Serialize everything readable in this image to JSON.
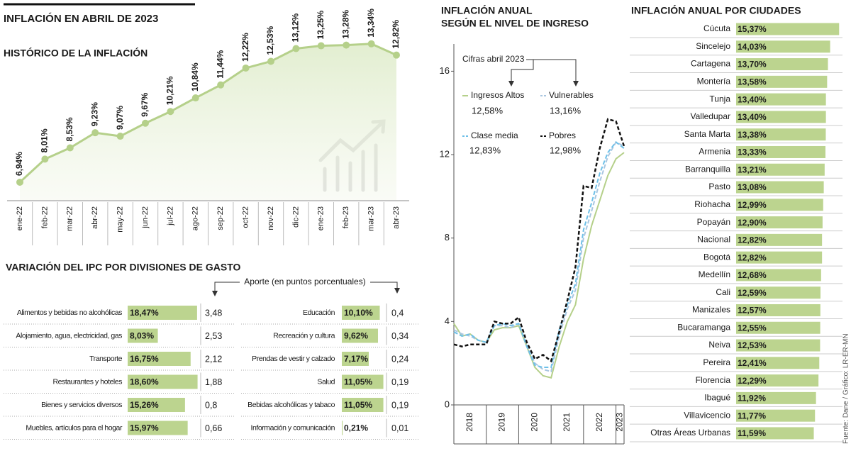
{
  "title": "INFLACIÓN EN ABRIL DE 2023",
  "source": "Fuente: Dane / Gráfico: LR-ER-MN",
  "chart_data": [
    {
      "type": "line",
      "title": "HISTÓRICO DE LA INFLACIÓN",
      "categories": [
        "ene-22",
        "feb-22",
        "mar-22",
        "abr-22",
        "may-22",
        "jun-22",
        "jul-22",
        "ago-22",
        "sep-22",
        "oct-22",
        "nov-22",
        "dic-22",
        "ene-23",
        "feb-23",
        "mar-23",
        "abr-23"
      ],
      "values": [
        6.94,
        8.01,
        8.53,
        9.23,
        9.07,
        9.67,
        10.21,
        10.84,
        11.44,
        12.22,
        12.53,
        13.12,
        13.25,
        13.28,
        13.34,
        12.82
      ],
      "value_labels": [
        "6,94%",
        "8,01%",
        "8,53%",
        "9,23%",
        "9,07%",
        "9,67%",
        "10,21%",
        "10,84%",
        "11,44%",
        "12,22%",
        "12,53%",
        "13,12%",
        "13,25%",
        "13,28%",
        "13,34%",
        "12,82%"
      ],
      "color": "#b5d08a"
    },
    {
      "type": "table-bar",
      "title": "VARIACIÓN DEL IPC POR DIVISIONES DE GASTO",
      "categories": [
        "Alimentos y bebidas no alcohólicas",
        "Alojamiento, agua, electricidad, gas",
        "Transporte",
        "Restaurantes y hoteles",
        "Bienes y servicios diversos",
        "Muebles, artículos para el hogar",
        "Educación",
        "Recreación y cultura",
        "Prendas de vestir y calzado",
        "Salud",
        "Bebidas alcohólicas y tabaco",
        "Información y comunicación"
      ],
      "values": [
        18.47,
        8.03,
        16.75,
        18.6,
        15.26,
        15.97,
        10.1,
        9.62,
        7.17,
        11.05,
        11.05,
        0.21
      ],
      "value_labels": [
        "18,47%",
        "8,03%",
        "16,75%",
        "18,60%",
        "15,26%",
        "15,97%",
        "10,10%",
        "9,62%",
        "7,17%",
        "11,05%",
        "11,05%",
        "0,21%"
      ],
      "color": "#bcd48f",
      "aporte_title": "Aporte (en puntos porcentuales)",
      "aporte": [
        3.48,
        2.53,
        2.12,
        1.88,
        0.8,
        0.66,
        0.4,
        0.34,
        0.24,
        0.19,
        0.19,
        0.01
      ],
      "aporte_labels": [
        "3,48",
        "2,53",
        "2,12",
        "1,88",
        "0,8",
        "0,66",
        "0,4",
        "0,34",
        "0,24",
        "0,19",
        "0,19",
        "0,01"
      ]
    },
    {
      "type": "multiline",
      "title": [
        "INFLACIÓN ANUAL",
        "SEGÚN EL NIVEL DE INGRESO"
      ],
      "annotation": "Cifras abril 2023",
      "x": [
        2018,
        2018.25,
        2018.5,
        2018.75,
        2019,
        2019.25,
        2019.5,
        2019.75,
        2020,
        2020.25,
        2020.5,
        2020.75,
        2021,
        2021.25,
        2021.5,
        2021.75,
        2022,
        2022.25,
        2022.5,
        2022.75,
        2023,
        2023.25
      ],
      "xlim": [
        2018,
        2023.25
      ],
      "xticks": [
        2018,
        2019,
        2020,
        2021,
        2022,
        2023
      ],
      "ylim": [
        0,
        17
      ],
      "yticks": [
        0,
        4,
        8,
        12,
        16
      ],
      "series": [
        {
          "name": "Ingresos Altos",
          "color": "#b5d08a",
          "style": "solid",
          "latest": {
            "value": 12.58,
            "label": "12,58%"
          },
          "values": [
            3.9,
            3.3,
            3.4,
            3.1,
            3.0,
            3.6,
            3.7,
            3.7,
            3.8,
            2.8,
            1.8,
            1.4,
            1.3,
            2.8,
            4.0,
            4.8,
            7.0,
            8.6,
            9.8,
            11.0,
            11.8,
            12.1
          ]
        },
        {
          "name": "Vulnerables",
          "color": "#a9c6e0",
          "style": "dashed",
          "latest": {
            "value": 13.16,
            "label": "13,16%"
          },
          "values": [
            3.6,
            3.4,
            3.3,
            3.1,
            3.0,
            3.8,
            3.8,
            3.7,
            3.9,
            2.9,
            2.0,
            1.7,
            1.6,
            3.3,
            4.6,
            5.5,
            8.0,
            9.3,
            10.7,
            11.9,
            12.6,
            12.4
          ]
        },
        {
          "name": "Clase media",
          "color": "#6ec0e8",
          "style": "dashed",
          "latest": {
            "value": 12.83,
            "label": "12,83%"
          },
          "values": [
            3.5,
            3.3,
            3.4,
            3.1,
            3.0,
            3.8,
            3.9,
            3.8,
            3.9,
            2.8,
            1.9,
            1.8,
            1.8,
            3.6,
            4.8,
            5.8,
            8.4,
            9.7,
            11.1,
            12.1,
            12.6,
            12.3
          ]
        },
        {
          "name": "Pobres",
          "color": "#111111",
          "style": "dashed",
          "latest": {
            "value": 12.98,
            "label": "12,98%"
          },
          "values": [
            2.9,
            2.8,
            2.9,
            2.9,
            2.9,
            4.0,
            3.9,
            3.9,
            4.2,
            3.0,
            2.2,
            2.4,
            2.1,
            3.5,
            5.0,
            6.6,
            10.5,
            10.4,
            12.3,
            13.7,
            13.6,
            12.4
          ]
        }
      ]
    },
    {
      "type": "hbar",
      "title": "INFLACIÓN ANUAL POR CIUDADES",
      "categories": [
        "Cúcuta",
        "Sincelejo",
        "Cartagena",
        "Montería",
        "Tunja",
        "Valledupar",
        "Santa Marta",
        "Armenia",
        "Barranquilla",
        "Pasto",
        "Riohacha",
        "Popayán",
        "Nacional",
        "Bogotá",
        "Medellín",
        "Cali",
        "Manizales",
        "Bucaramanga",
        "Neiva",
        "Pereira",
        "Florencia",
        "Ibagué",
        "Villavicencio",
        "Otras Áreas Urbanas"
      ],
      "values": [
        15.37,
        14.03,
        13.7,
        13.58,
        13.4,
        13.4,
        13.38,
        13.33,
        13.21,
        13.08,
        12.99,
        12.9,
        12.82,
        12.82,
        12.68,
        12.59,
        12.57,
        12.55,
        12.53,
        12.41,
        12.29,
        11.92,
        11.77,
        11.59
      ],
      "value_labels": [
        "15,37%",
        "14,03%",
        "13,70%",
        "13,58%",
        "13,40%",
        "13,40%",
        "13,38%",
        "13,33%",
        "13,21%",
        "13,08%",
        "12,99%",
        "12,90%",
        "12,82%",
        "12,82%",
        "12,68%",
        "12,59%",
        "12,57%",
        "12,55%",
        "12,53%",
        "12,41%",
        "12,29%",
        "11,92%",
        "11,77%",
        "11,59%"
      ],
      "color": "#bcd48f"
    }
  ]
}
